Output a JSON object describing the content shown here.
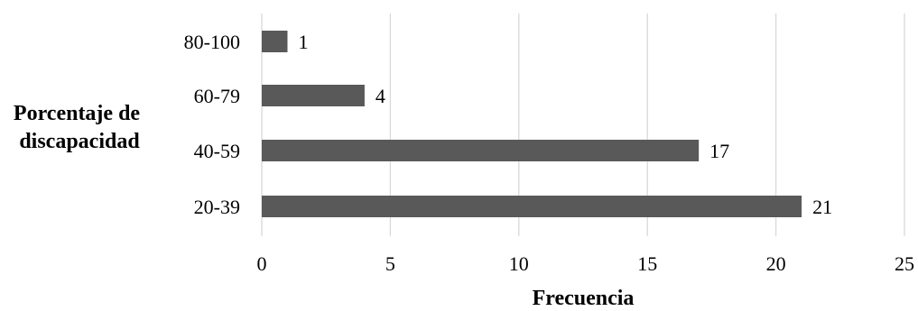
{
  "chart_data": {
    "type": "bar",
    "orientation": "horizontal",
    "categories": [
      "20-39",
      "40-59",
      "60-79",
      "80-100"
    ],
    "values": [
      21,
      17,
      4,
      1
    ],
    "data_labels": [
      "21",
      "17",
      "4",
      "1"
    ],
    "xlabel": "Frecuencia",
    "ylabel": "Porcentaje de discapacidad",
    "ylabel_lines": [
      "Porcentaje de",
      "discapacidad"
    ],
    "xlim": [
      0,
      25
    ],
    "x_ticks": [
      0,
      5,
      10,
      15,
      20,
      25
    ],
    "x_tick_labels": [
      "0",
      "5",
      "10",
      "15",
      "20",
      "25"
    ],
    "grid": true,
    "legend": "none",
    "bar_color": "#595959",
    "grid_color": "#d9d9d9"
  }
}
